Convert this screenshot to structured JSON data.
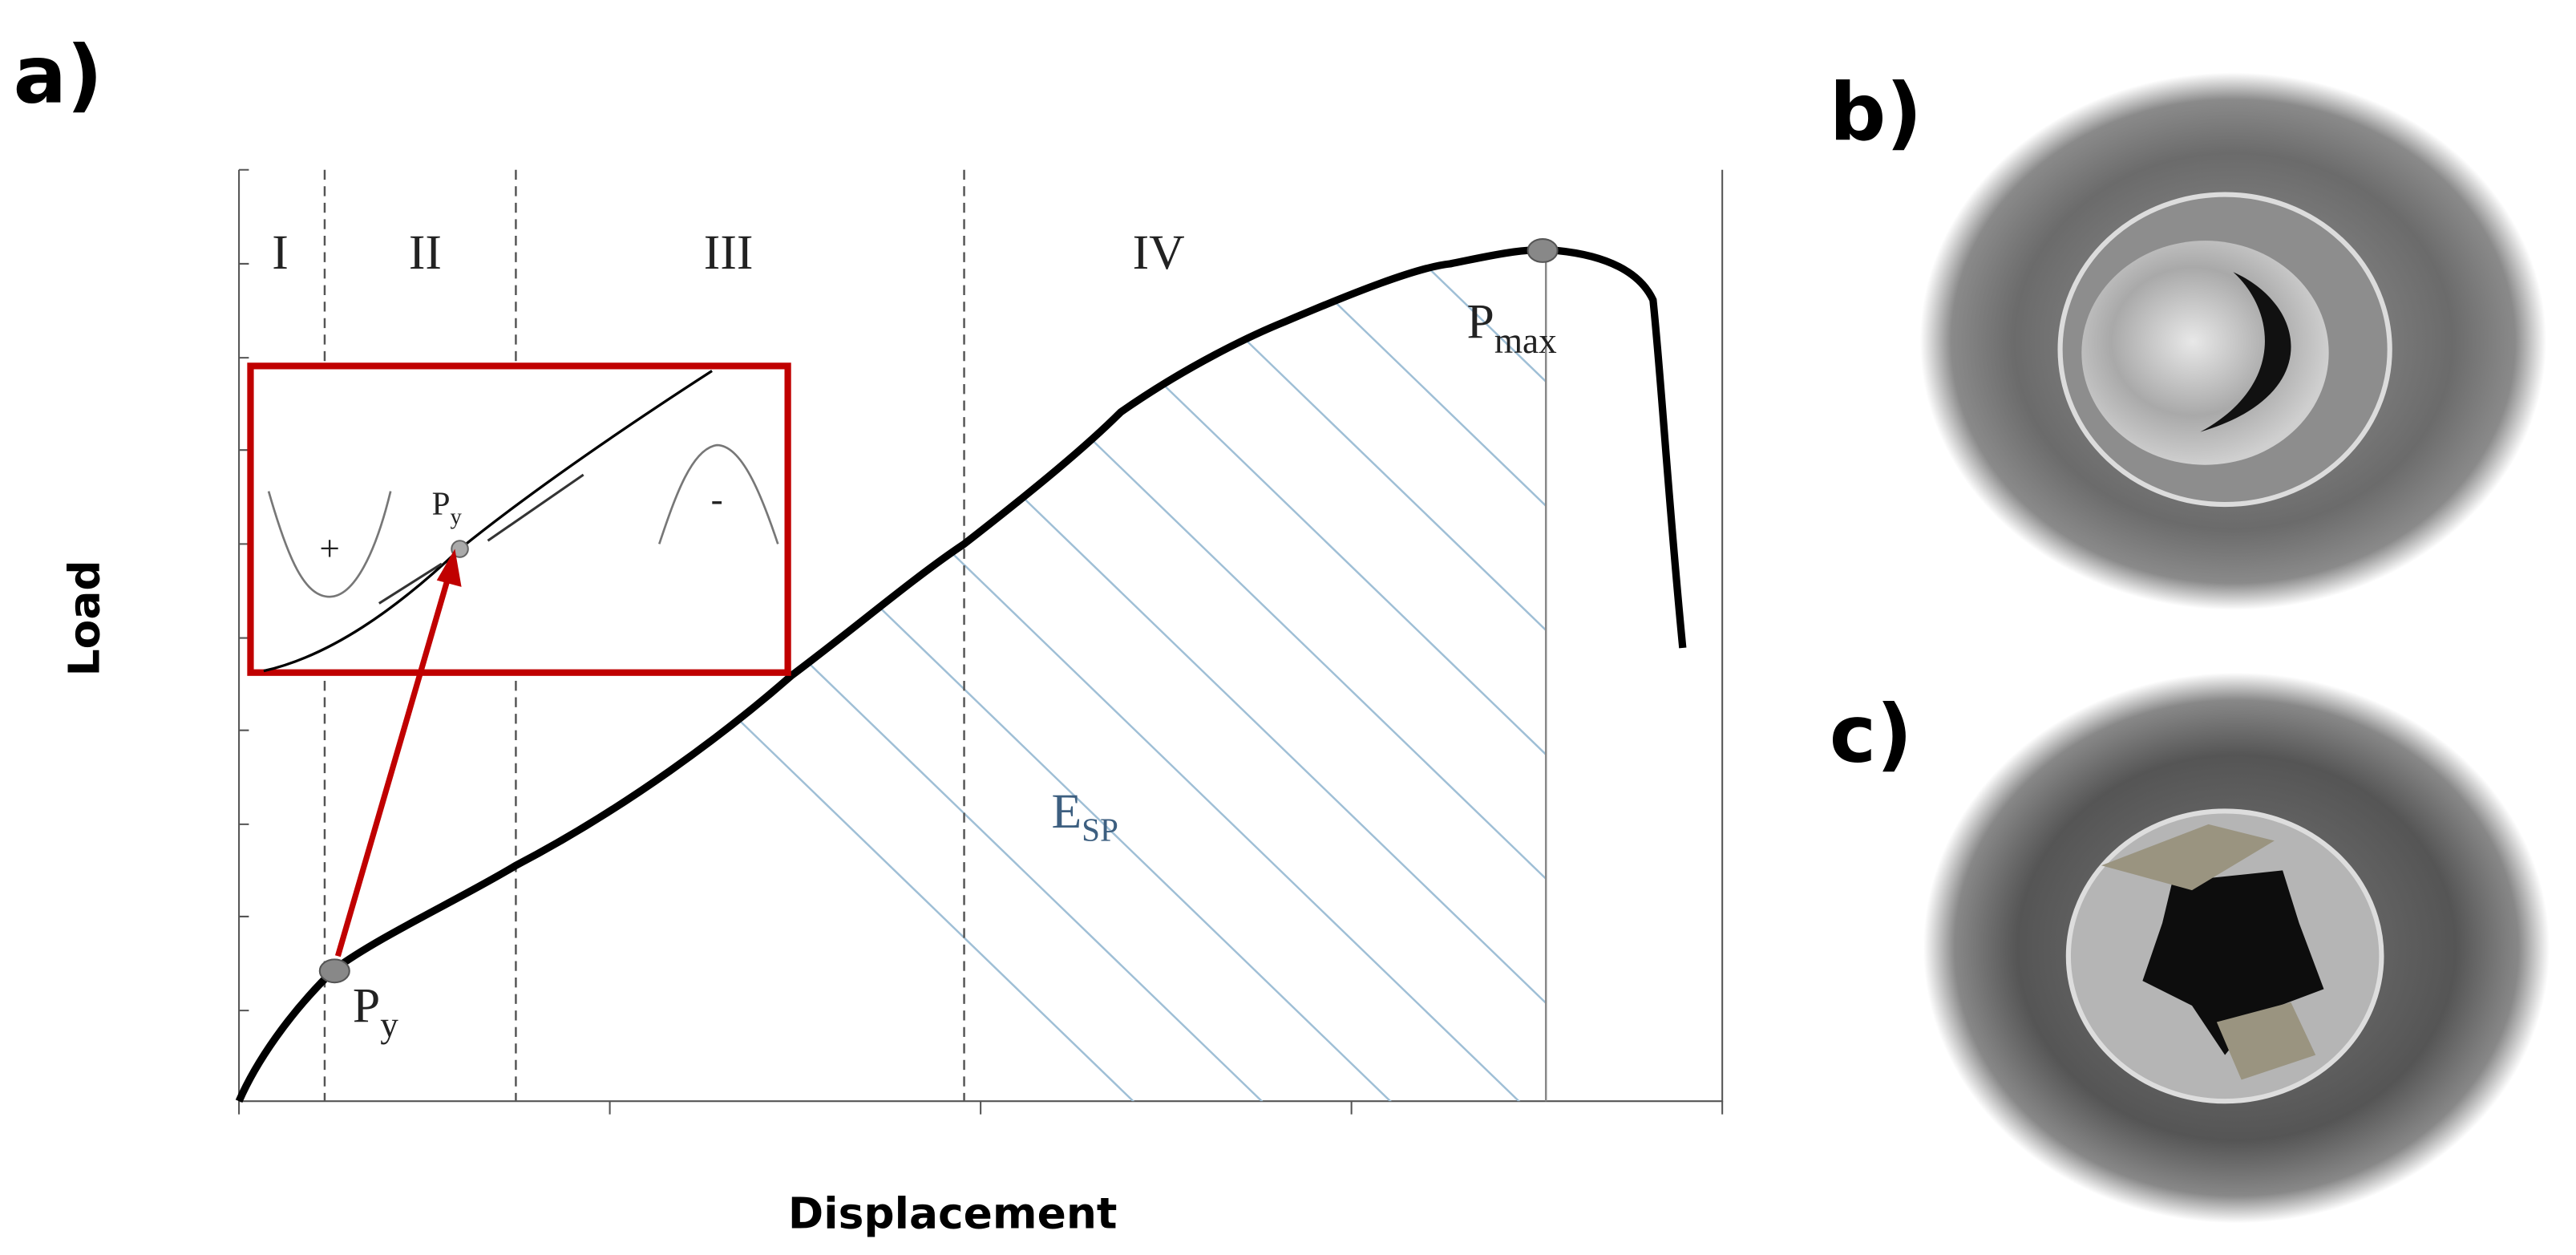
{
  "panels": {
    "a": "a)",
    "b": "b)",
    "c": "c)"
  },
  "axes": {
    "x_label": "Displacement",
    "y_label": "Load"
  },
  "regions": [
    "I",
    "II",
    "III",
    "IV"
  ],
  "annotations": {
    "py": "P",
    "py_sub": "y",
    "pmax": "P",
    "pmax_sub": "max",
    "esp": "E",
    "esp_sub": "SP"
  },
  "inset": {
    "py": "P",
    "py_sub": "y",
    "plus": "+",
    "minus": "-"
  }
}
